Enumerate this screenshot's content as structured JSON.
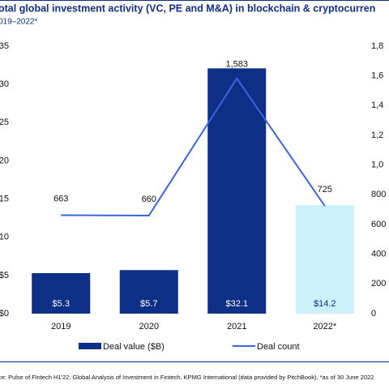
{
  "chart_data": {
    "type": "bar",
    "title": "otal global investment activity (VC, PE and M&A) in blockchain & cryptocurren",
    "subtitle": "019–2022*",
    "source": "ce: Pulse of Fintech H1'22, Global Analysis of Investment in Fintech, KPMG International (data provided by PitchBook), *as of 30 June 2022",
    "categories": [
      "2019",
      "2020",
      "2021",
      "2022*"
    ],
    "series": [
      {
        "name": "Deal value ($B)",
        "type": "bar",
        "color": "#0e2f86",
        "colors": [
          "#0e2f86",
          "#0e2f86",
          "#0e2f86",
          "#cdf1fc"
        ],
        "values": [
          5.3,
          5.7,
          32.1,
          14.2
        ],
        "value_labels": [
          "$5.3",
          "$5.7",
          "$32.1",
          "$14.2"
        ]
      },
      {
        "name": "Deal count",
        "type": "line",
        "axis": "y2",
        "color": "#3d63e0",
        "values": [
          663,
          660,
          1583,
          725
        ],
        "value_labels": [
          "663",
          "660",
          "1,583",
          "725"
        ]
      }
    ],
    "ylim": [
      0,
      35
    ],
    "yticks": [
      {
        "value": 0,
        "label": "$0"
      },
      {
        "value": 5,
        "label": "$5"
      },
      10,
      15,
      20,
      25,
      30,
      35
    ],
    "y2lim": [
      0,
      1800
    ],
    "y2ticks": [
      0,
      200,
      400,
      600,
      800,
      {
        "value": 1000,
        "label": "1,0"
      },
      {
        "value": 1200,
        "label": "1,2"
      },
      {
        "value": 1400,
        "label": "1,4"
      },
      {
        "value": 1600,
        "label": "1,6"
      },
      {
        "value": 1800,
        "label": "1,8"
      }
    ],
    "grid": false
  }
}
